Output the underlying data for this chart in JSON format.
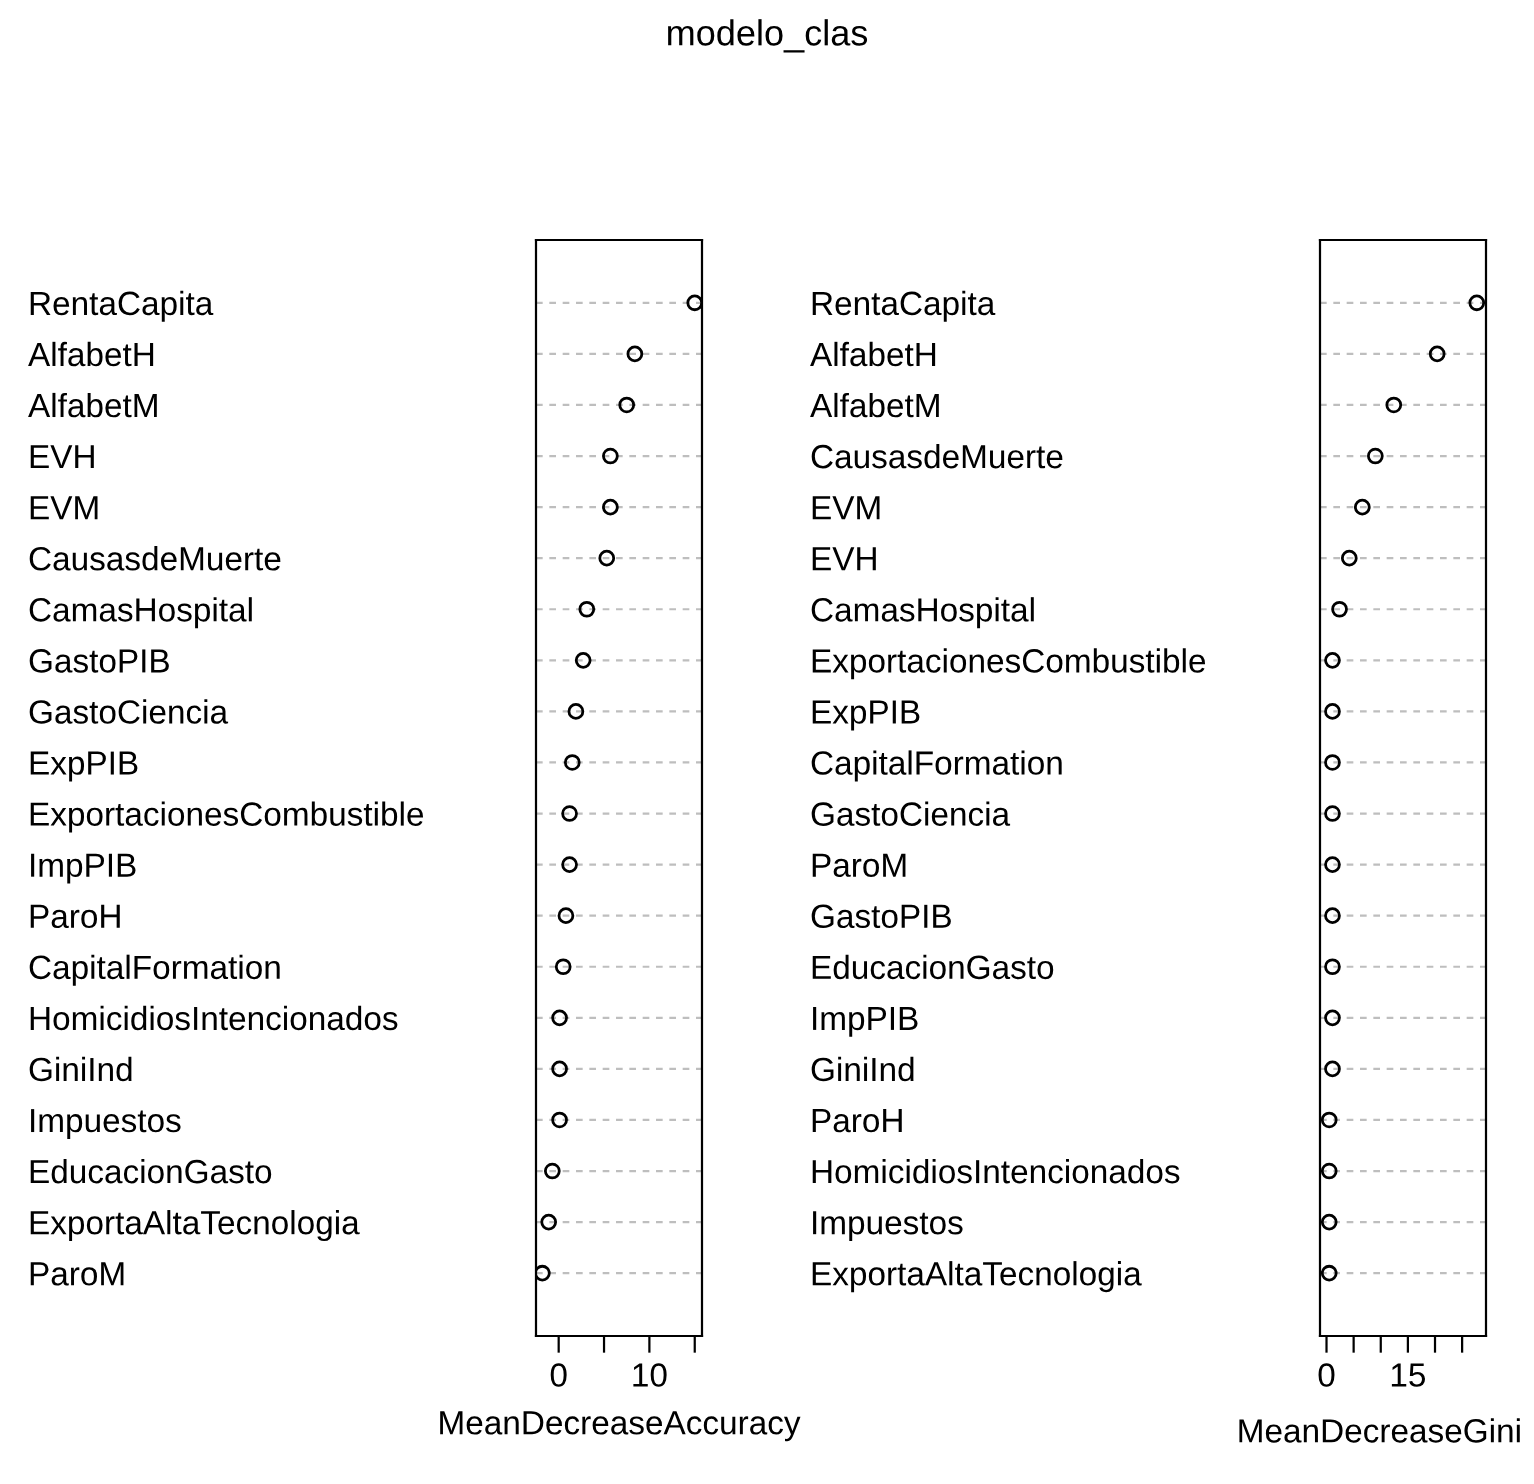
{
  "chart_data": [
    {
      "type": "scatter",
      "title": "modelo_clas",
      "orientation": "horizontal",
      "xlabel": "MeanDecreaseAccuracy",
      "marker": "circle",
      "grid": "y",
      "categories": [
        "RentaCapita",
        "AlfabetH",
        "AlfabetM",
        "EVH",
        "EVM",
        "CausasdeMuerte",
        "CamasHospital",
        "GastoPIB",
        "GastoCiencia",
        "ExpPIB",
        "ExportacionesCombustible",
        "ImpPIB",
        "ParoH",
        "CapitalFormation",
        "HomicidiosIntencionados",
        "GiniInd",
        "Impuestos",
        "EducacionGasto",
        "ExportaAltaTecnologia",
        "ParoM"
      ],
      "values": [
        15.0,
        8.4,
        7.5,
        5.7,
        5.7,
        5.3,
        3.1,
        2.7,
        1.9,
        1.5,
        1.2,
        1.2,
        0.8,
        0.5,
        0.1,
        0.1,
        0.1,
        -0.7,
        -1.1,
        -1.8
      ],
      "color": "#000000",
      "xlim": [
        -2.5,
        15.8
      ],
      "xticks": [
        0,
        {
          "value": 5,
          "label": null
        },
        10,
        {
          "value": 15,
          "label": null
        }
      ]
    },
    {
      "type": "scatter",
      "orientation": "horizontal",
      "xlabel": "MeanDecreaseGini",
      "marker": "circle",
      "grid": "y",
      "categories": [
        "RentaCapita",
        "AlfabetH",
        "AlfabetM",
        "CausasdeMuerte",
        "EVM",
        "EVH",
        "CamasHospital",
        "ExportacionesCombustible",
        "ExpPIB",
        "CapitalFormation",
        "GastoCiencia",
        "ParoM",
        "GastoPIB",
        "EducacionGasto",
        "ImpPIB",
        "GiniInd",
        "ParoH",
        "HomicidiosIntencionados",
        "Impuestos",
        "ExportaAltaTecnologia"
      ],
      "values": [
        27.7,
        20.4,
        12.4,
        9.0,
        6.6,
        4.2,
        2.4,
        1.1,
        1.1,
        1.1,
        1.1,
        1.1,
        1.1,
        1.1,
        1.1,
        1.1,
        0.5,
        0.5,
        0.5,
        0.5
      ],
      "color": "#000000",
      "xlim": [
        -1.2,
        29.4
      ],
      "xticks": [
        0,
        {
          "value": 5,
          "label": null
        },
        {
          "value": 10,
          "label": null
        },
        15,
        {
          "value": 20,
          "label": null
        },
        {
          "value": 25,
          "label": null
        }
      ]
    }
  ]
}
